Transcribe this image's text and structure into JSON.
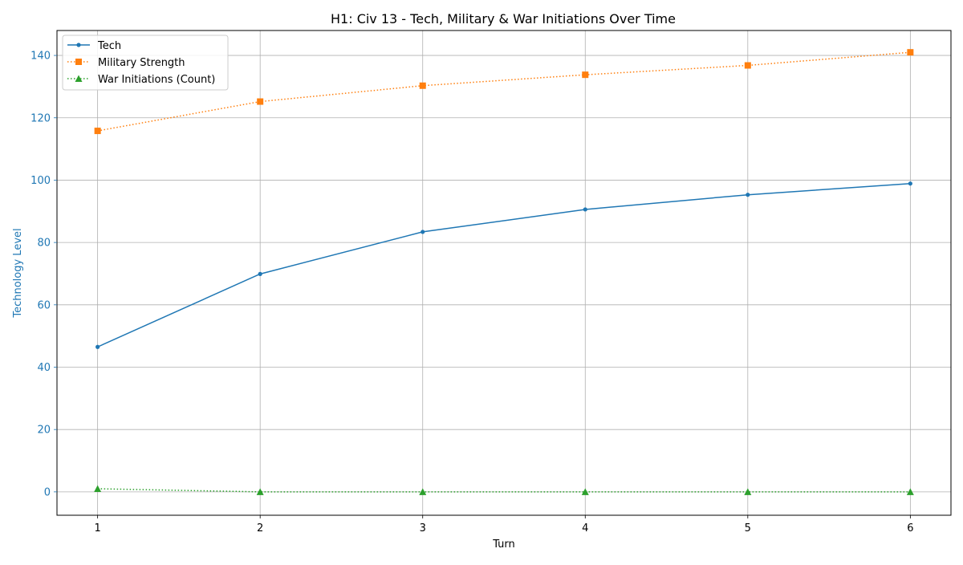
{
  "chart_data": {
    "type": "line",
    "title": "H1: Civ 13 - Tech, Military & War Initiations Over Time",
    "xlabel": "Turn",
    "ylabel": "Technology Level",
    "x": [
      1,
      2,
      3,
      4,
      5,
      6
    ],
    "x_ticks": [
      "1",
      "2",
      "3",
      "4",
      "5",
      "6"
    ],
    "xlim": [
      0.75,
      6.25
    ],
    "y_ticks": [
      0,
      20,
      40,
      60,
      80,
      100,
      120,
      140
    ],
    "ylim": [
      -7.5,
      148
    ],
    "grid": true,
    "legend_position": "top-left",
    "ylabel_color": "#1f77b4",
    "series": [
      {
        "name": "Tech",
        "values": [
          46.5,
          69.9,
          83.4,
          90.6,
          95.3,
          98.9
        ],
        "color": "#1f77b4",
        "linestyle": "solid",
        "marker": "circle"
      },
      {
        "name": "Military Strength",
        "values": [
          115.8,
          125.2,
          130.3,
          133.8,
          136.8,
          141.0
        ],
        "color": "#ff7f0e",
        "linestyle": "dotted",
        "marker": "square"
      },
      {
        "name": "War Initiations (Count)",
        "values": [
          1,
          0,
          0,
          0,
          0,
          0
        ],
        "color": "#2ca02c",
        "linestyle": "dotted",
        "marker": "triangle"
      }
    ]
  }
}
